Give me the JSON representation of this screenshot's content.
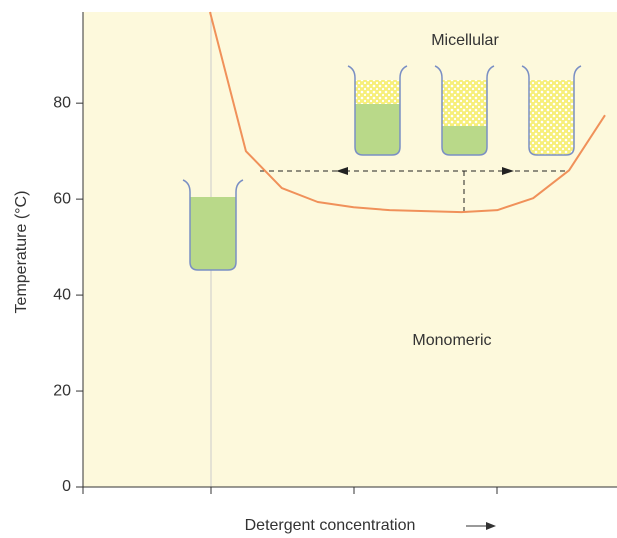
{
  "chart_data": {
    "type": "line",
    "ylabel": "Temperature (°C)",
    "xlabel": "Detergent concentration",
    "annotations": [
      "Micellular",
      "Monomeric"
    ],
    "ylim": [
      0,
      99
    ],
    "yticks": [
      0,
      20,
      40,
      60,
      80
    ],
    "categories": [
      null,
      null,
      null,
      null,
      null,
      null,
      null,
      null,
      null,
      null,
      null,
      null
    ],
    "series": [
      {
        "color": "#f0915a",
        "values": [
          99,
          70,
          62.3,
          59.4,
          58.3,
          57.7,
          57.5,
          57.3,
          57.7,
          60.2,
          66,
          77.5
        ]
      }
    ]
  }
}
